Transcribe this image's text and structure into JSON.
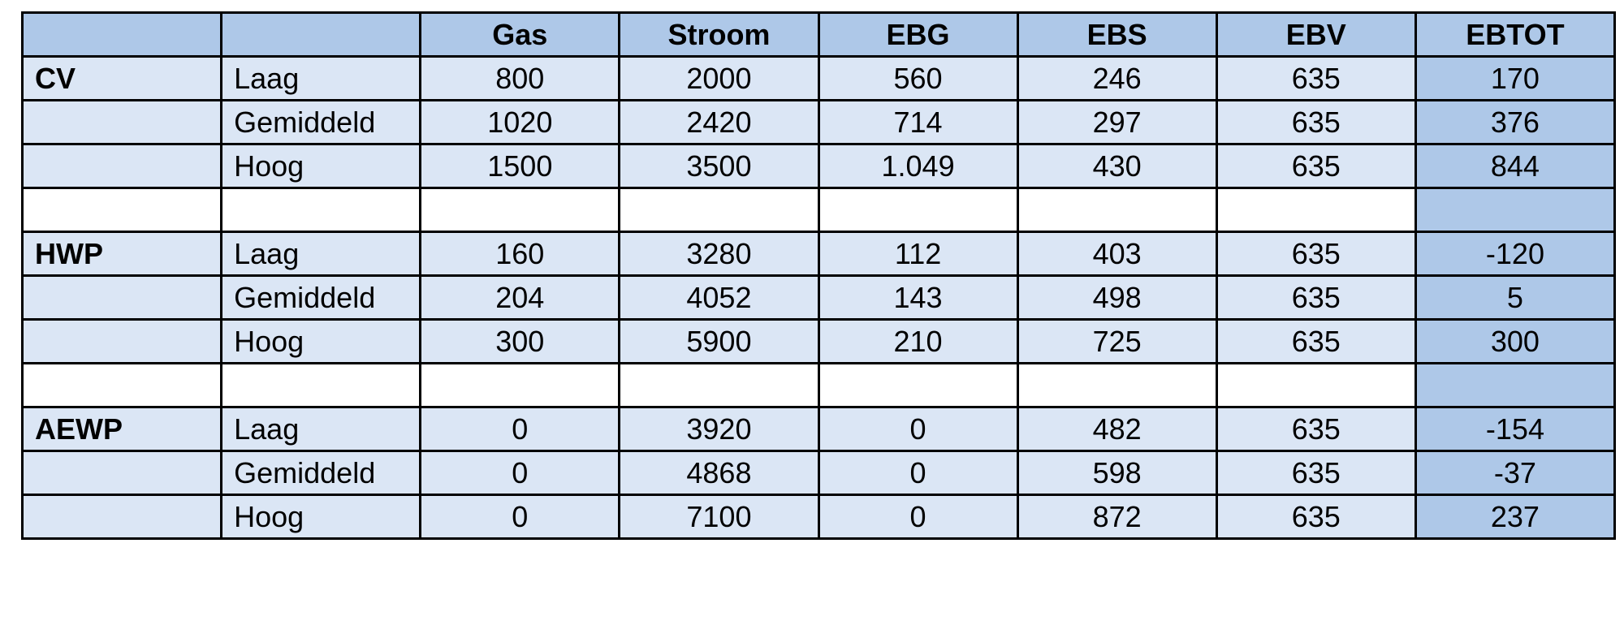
{
  "colors": {
    "header": "#aec8e8",
    "cell": "#dbe6f5",
    "total_column": "#aec8e8"
  },
  "headers": [
    "",
    "",
    "Gas",
    "Stroom",
    "EBG",
    "EBS",
    "EBV",
    "EBTOT"
  ],
  "groups": [
    {
      "name": "CV",
      "rows": [
        {
          "level": "Laag",
          "values": [
            "800",
            "2000",
            "560",
            "246",
            "635",
            "170"
          ]
        },
        {
          "level": "Gemiddeld",
          "values": [
            "1020",
            "2420",
            "714",
            "297",
            "635",
            "376"
          ]
        },
        {
          "level": "Hoog",
          "values": [
            "1500",
            "3500",
            "1.049",
            "430",
            "635",
            "844"
          ]
        }
      ]
    },
    {
      "name": "HWP",
      "rows": [
        {
          "level": "Laag",
          "values": [
            "160",
            "3280",
            "112",
            "403",
            "635",
            "-120"
          ]
        },
        {
          "level": "Gemiddeld",
          "values": [
            "204",
            "4052",
            "143",
            "498",
            "635",
            "5"
          ]
        },
        {
          "level": "Hoog",
          "values": [
            "300",
            "5900",
            "210",
            "725",
            "635",
            "300"
          ]
        }
      ]
    },
    {
      "name": "AEWP",
      "rows": [
        {
          "level": "Laag",
          "values": [
            "0",
            "3920",
            "0",
            "482",
            "635",
            "-154"
          ]
        },
        {
          "level": "Gemiddeld",
          "values": [
            "0",
            "4868",
            "0",
            "598",
            "635",
            "-37"
          ]
        },
        {
          "level": "Hoog",
          "values": [
            "0",
            "7100",
            "0",
            "872",
            "635",
            "237"
          ]
        }
      ]
    }
  ]
}
